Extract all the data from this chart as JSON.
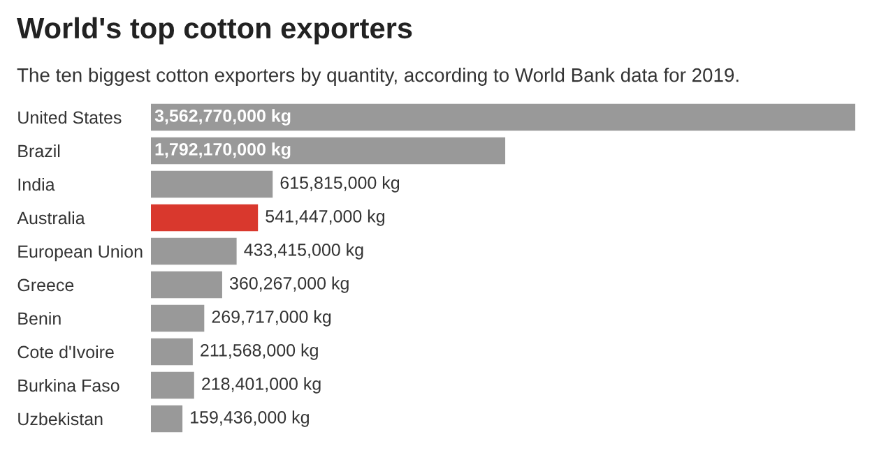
{
  "chart_data": {
    "type": "bar",
    "orientation": "horizontal",
    "title": "World's top cotton exporters",
    "subtitle": "The ten biggest cotton exporters by quantity, according to World Bank data for 2019.",
    "categories": [
      "United States",
      "Brazil",
      "India",
      "Australia",
      "European Union",
      "Greece",
      "Benin",
      "Cote d'Ivoire",
      "Burkina Faso",
      "Uzbekistan"
    ],
    "values": [
      3562770000,
      1792170000,
      615815000,
      541447000,
      433415000,
      360267000,
      269717000,
      211568000,
      218401000,
      159436000
    ],
    "colors": [
      "#999999",
      "#999999",
      "#999999",
      "#d9382d",
      "#999999",
      "#999999",
      "#999999",
      "#999999",
      "#999999",
      "#999999"
    ],
    "value_labels": [
      "3,562,770,000 kg",
      "1,792,170,000 kg",
      "615,815,000 kg",
      "541,447,000 kg",
      "433,415,000 kg",
      "360,267,000 kg",
      "269,717,000 kg",
      "211,568,000 kg",
      "218,401,000 kg",
      "159,436,000 kg"
    ],
    "tick_labels": "y",
    "grid": false,
    "legend": false
  }
}
